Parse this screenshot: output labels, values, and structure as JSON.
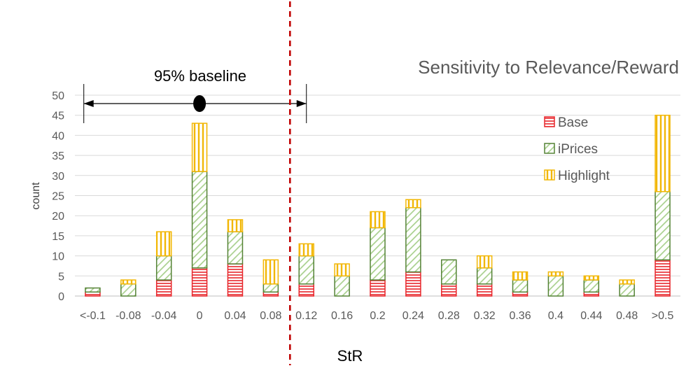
{
  "chart_data": {
    "type": "bar",
    "stacked": true,
    "title": "Sensitivity to Relevance/Reward",
    "xlabel": "StR",
    "ylabel": "count",
    "ylim": [
      0,
      50
    ],
    "yticks": [
      0,
      5,
      10,
      15,
      20,
      25,
      30,
      35,
      40,
      45,
      50
    ],
    "grid": true,
    "legend_position": "right",
    "categories": [
      "<-0.1",
      "-0.08",
      "-0.04",
      "0",
      "0.04",
      "0.08",
      "0.12",
      "0.16",
      "0.2",
      "0.24",
      "0.28",
      "0.32",
      "0.36",
      "0.4",
      "0.44",
      "0.48",
      ">0.5"
    ],
    "series": [
      {
        "name": "Base",
        "color": "#e8262b",
        "pattern": "horizontal-lines",
        "values": [
          1,
          0,
          4,
          7,
          8,
          1,
          3,
          0,
          4,
          6,
          3,
          3,
          1,
          0,
          1,
          0,
          9
        ]
      },
      {
        "name": "iPrices",
        "color": "#548235",
        "pattern": "diagonal-lines",
        "values": [
          1,
          3,
          6,
          24,
          8,
          2,
          7,
          5,
          13,
          16,
          6,
          4,
          3,
          5,
          3,
          3,
          17
        ]
      },
      {
        "name": "Highlight",
        "color": "#f2b705",
        "pattern": "vertical-lines",
        "values": [
          0,
          1,
          6,
          12,
          3,
          6,
          3,
          3,
          4,
          2,
          0,
          3,
          2,
          1,
          1,
          1,
          19
        ]
      }
    ],
    "annotations": {
      "baseline_label": "95% baseline",
      "baseline_range": [
        "<-0.1",
        "0.12"
      ],
      "baseline_center": "0",
      "divider_after_category": "0.08",
      "divider_style": "dashed",
      "divider_color": "#c00000"
    }
  }
}
